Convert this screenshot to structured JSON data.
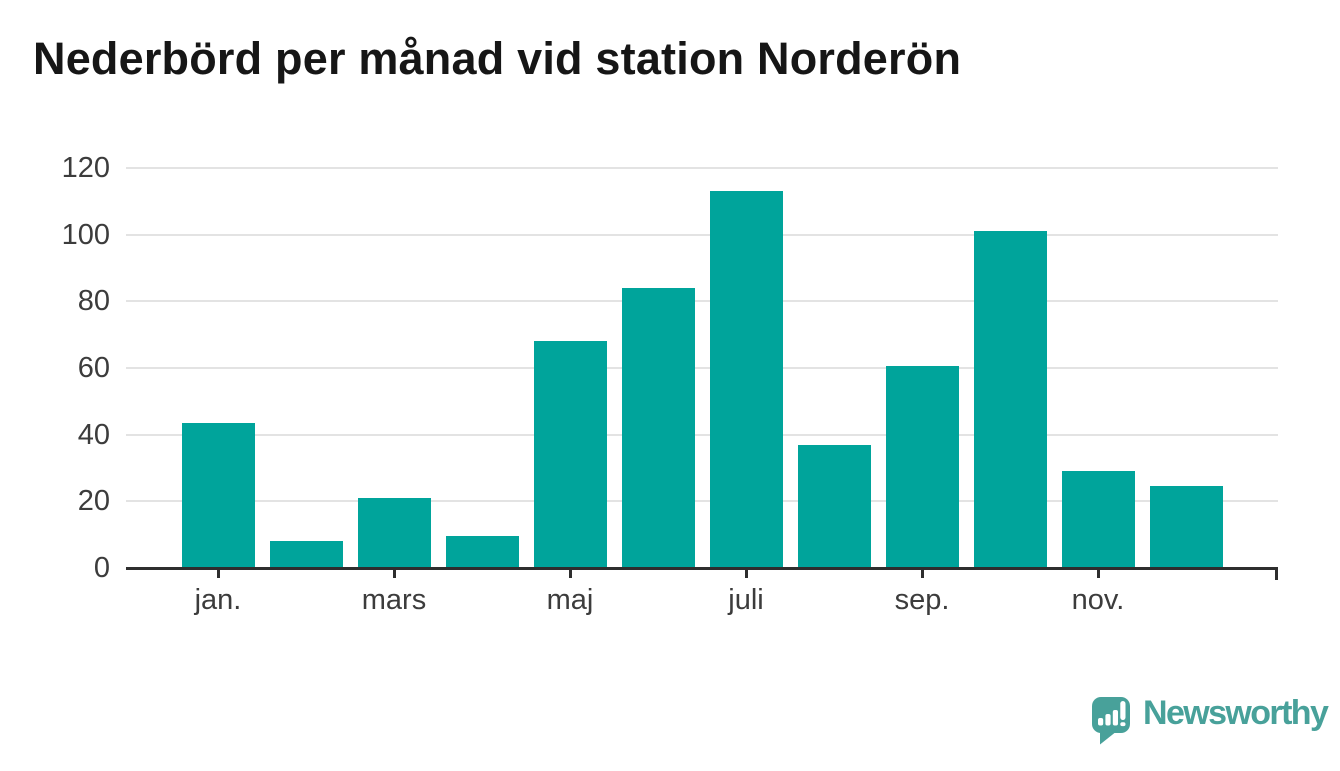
{
  "title": "Nederbörd per månad vid station Norderön",
  "branding": {
    "wordmark": "Newsworthy",
    "logo_icon": "speech-bubble-bar-chart-icon"
  },
  "colors": {
    "bar": "#00A49B",
    "gridline": "#E3E3E3",
    "axis": "#2E2E2E",
    "tick_label": "#3C3C3C",
    "title": "#161616",
    "brand_teal": "#48A19A",
    "background": "#FFFFFF"
  },
  "chart_data": {
    "type": "bar",
    "title": "Nederbörd per månad vid station Norderön",
    "categories": [
      "jan.",
      "",
      "mars",
      "",
      "maj",
      "",
      "juli",
      "",
      "sep.",
      "",
      "nov.",
      ""
    ],
    "values": [
      43.5,
      8,
      21,
      9.5,
      68,
      84,
      113,
      37,
      60.5,
      101,
      29,
      24.5
    ],
    "xlabel": "",
    "ylabel": "",
    "y_ticks": [
      0,
      20,
      40,
      60,
      80,
      100,
      120
    ],
    "ylim": [
      0,
      120
    ],
    "grid": "horizontal-only",
    "legend": "none",
    "bar_color": "#00A49B",
    "n_bars": 12
  }
}
